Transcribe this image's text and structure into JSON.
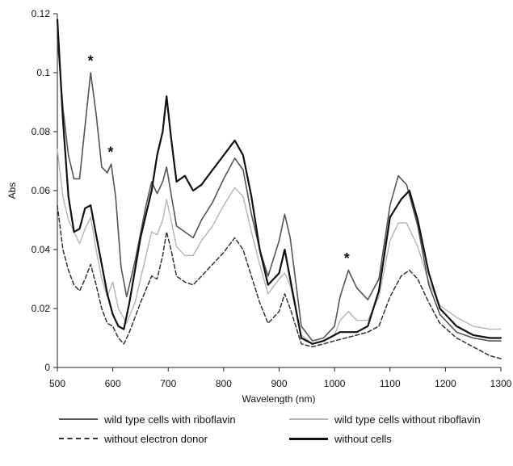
{
  "chart_data": {
    "type": "line",
    "xlabel": "Wavelength (nm)",
    "ylabel": "Abs",
    "xlim": [
      500,
      1300
    ],
    "ylim": [
      0,
      0.12
    ],
    "xticks": [
      "500",
      "600",
      "700",
      "800",
      "900",
      "1000",
      "1100",
      "1200",
      "1300"
    ],
    "yticks": [
      "0",
      "0.02",
      "0.04",
      "0.06",
      "0.08",
      "0.1",
      "0.12"
    ],
    "grid": false,
    "legend_position": "bottom",
    "annotations": [
      {
        "text": "*",
        "x": 560,
        "y": 0.104
      },
      {
        "text": "*",
        "x": 596,
        "y": 0.073
      },
      {
        "text": "*",
        "x": 1022,
        "y": 0.037
      }
    ],
    "series": [
      {
        "name": "wild type cells with riboflavin",
        "color": "#555555",
        "style": "solid",
        "x": [
          500,
          510,
          520,
          530,
          540,
          550,
          560,
          570,
          580,
          590,
          597,
          605,
          615,
          625,
          640,
          660,
          670,
          680,
          690,
          697,
          705,
          715,
          730,
          745,
          760,
          780,
          800,
          820,
          835,
          850,
          865,
          880,
          900,
          910,
          920,
          940,
          960,
          980,
          1000,
          1010,
          1025,
          1040,
          1060,
          1080,
          1100,
          1115,
          1130,
          1150,
          1170,
          1190,
          1220,
          1250,
          1280,
          1300
        ],
        "y": [
          0.112,
          0.088,
          0.072,
          0.064,
          0.064,
          0.082,
          0.1,
          0.086,
          0.068,
          0.066,
          0.069,
          0.058,
          0.034,
          0.024,
          0.036,
          0.055,
          0.063,
          0.059,
          0.063,
          0.068,
          0.059,
          0.048,
          0.046,
          0.044,
          0.05,
          0.056,
          0.064,
          0.071,
          0.067,
          0.052,
          0.04,
          0.031,
          0.043,
          0.052,
          0.044,
          0.014,
          0.009,
          0.01,
          0.014,
          0.024,
          0.033,
          0.027,
          0.023,
          0.03,
          0.055,
          0.065,
          0.062,
          0.048,
          0.028,
          0.018,
          0.012,
          0.01,
          0.009,
          0.009
        ]
      },
      {
        "name": "wild type cells without riboflavin",
        "color": "#b4b4b4",
        "style": "solid",
        "x": [
          500,
          510,
          520,
          530,
          540,
          550,
          560,
          570,
          580,
          590,
          600,
          610,
          625,
          640,
          660,
          670,
          680,
          690,
          697,
          705,
          715,
          730,
          745,
          760,
          780,
          800,
          820,
          835,
          850,
          865,
          880,
          900,
          910,
          920,
          940,
          960,
          980,
          1000,
          1010,
          1025,
          1040,
          1060,
          1080,
          1100,
          1115,
          1130,
          1150,
          1170,
          1190,
          1220,
          1250,
          1280,
          1300
        ],
        "y": [
          0.074,
          0.058,
          0.05,
          0.046,
          0.042,
          0.047,
          0.051,
          0.04,
          0.03,
          0.024,
          0.029,
          0.02,
          0.015,
          0.022,
          0.038,
          0.046,
          0.045,
          0.05,
          0.057,
          0.05,
          0.041,
          0.038,
          0.038,
          0.043,
          0.048,
          0.055,
          0.061,
          0.058,
          0.046,
          0.035,
          0.025,
          0.03,
          0.032,
          0.028,
          0.011,
          0.008,
          0.009,
          0.011,
          0.016,
          0.019,
          0.016,
          0.016,
          0.024,
          0.043,
          0.049,
          0.049,
          0.041,
          0.029,
          0.021,
          0.017,
          0.014,
          0.013,
          0.013
        ]
      },
      {
        "name": "without electron donor",
        "color": "#333333",
        "style": "dashed",
        "x": [
          500,
          510,
          520,
          530,
          540,
          550,
          560,
          570,
          580,
          590,
          600,
          610,
          620,
          630,
          650,
          670,
          680,
          690,
          697,
          705,
          715,
          730,
          745,
          760,
          780,
          800,
          820,
          835,
          850,
          865,
          880,
          900,
          910,
          920,
          940,
          960,
          980,
          1000,
          1020,
          1040,
          1060,
          1080,
          1100,
          1120,
          1135,
          1150,
          1170,
          1190,
          1220,
          1250,
          1280,
          1300
        ],
        "y": [
          0.055,
          0.04,
          0.033,
          0.028,
          0.026,
          0.03,
          0.035,
          0.028,
          0.02,
          0.015,
          0.014,
          0.01,
          0.008,
          0.012,
          0.022,
          0.031,
          0.03,
          0.038,
          0.046,
          0.04,
          0.031,
          0.029,
          0.028,
          0.031,
          0.035,
          0.039,
          0.044,
          0.04,
          0.031,
          0.022,
          0.015,
          0.019,
          0.025,
          0.02,
          0.008,
          0.007,
          0.008,
          0.009,
          0.01,
          0.011,
          0.012,
          0.014,
          0.024,
          0.031,
          0.033,
          0.03,
          0.022,
          0.015,
          0.01,
          0.007,
          0.004,
          0.003
        ]
      },
      {
        "name": "without cells",
        "color": "#111111",
        "style": "solid",
        "x": [
          500,
          510,
          520,
          530,
          540,
          550,
          560,
          570,
          580,
          590,
          600,
          610,
          620,
          630,
          650,
          670,
          680,
          690,
          697,
          705,
          715,
          730,
          745,
          760,
          780,
          800,
          820,
          835,
          850,
          865,
          880,
          900,
          910,
          920,
          940,
          960,
          980,
          1000,
          1010,
          1025,
          1040,
          1060,
          1080,
          1100,
          1120,
          1135,
          1150,
          1170,
          1190,
          1220,
          1250,
          1280,
          1300
        ],
        "y": [
          0.118,
          0.084,
          0.058,
          0.046,
          0.047,
          0.054,
          0.055,
          0.045,
          0.035,
          0.025,
          0.018,
          0.014,
          0.013,
          0.022,
          0.044,
          0.06,
          0.072,
          0.08,
          0.092,
          0.078,
          0.063,
          0.065,
          0.06,
          0.062,
          0.067,
          0.072,
          0.077,
          0.072,
          0.058,
          0.04,
          0.028,
          0.032,
          0.04,
          0.03,
          0.01,
          0.008,
          0.009,
          0.011,
          0.012,
          0.012,
          0.012,
          0.014,
          0.026,
          0.051,
          0.057,
          0.06,
          0.05,
          0.032,
          0.02,
          0.014,
          0.011,
          0.01,
          0.01
        ]
      }
    ]
  }
}
